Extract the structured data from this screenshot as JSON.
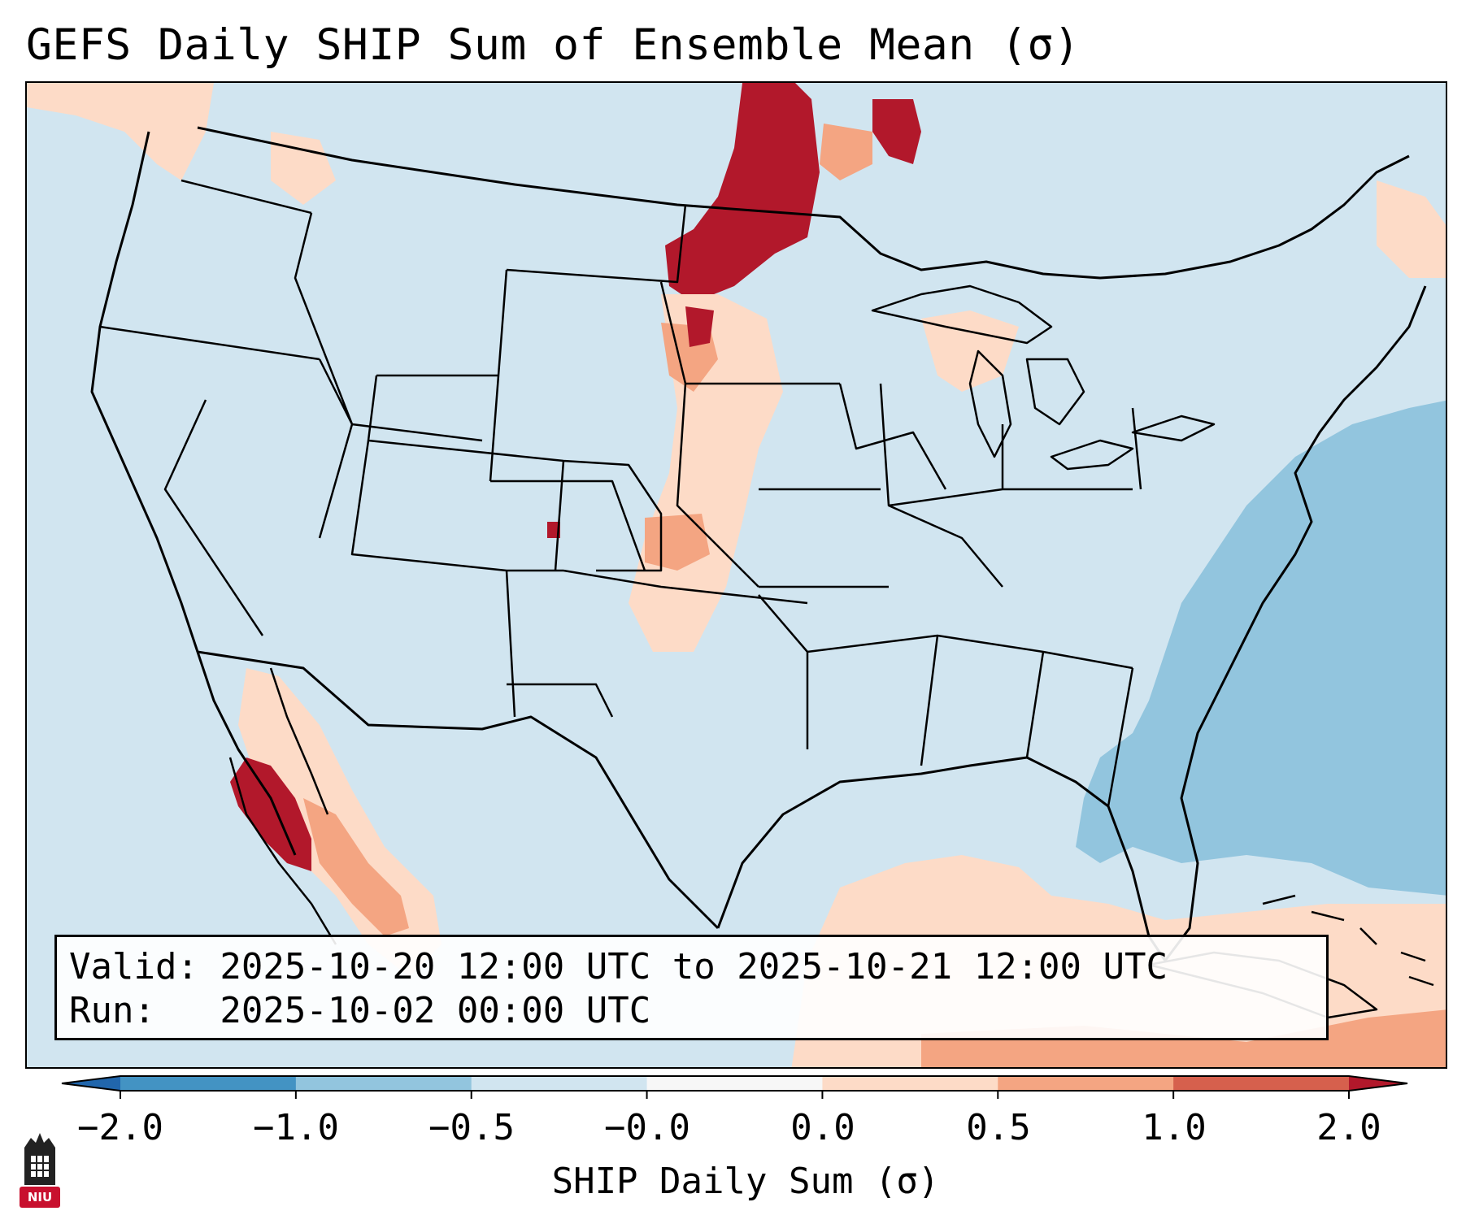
{
  "title": "GEFS Daily SHIP Sum of Ensemble Mean (σ)",
  "info": {
    "valid_line": "Valid: 2025-10-20 12:00 UTC to 2025-10-21 12:00 UTC",
    "run_line": "Run:   2025-10-02 00:00 UTC"
  },
  "colorbar": {
    "label": "SHIP Daily Sum (σ)",
    "ticks": [
      "−2.0",
      "−1.0",
      "−0.5",
      "−0.0",
      "0.0",
      "0.5",
      "1.0",
      "2.0"
    ],
    "bin_colors": [
      "#4393c3",
      "#92c5de",
      "#d1e5f0",
      "#f7f7f7",
      "#fddbc7",
      "#f4a582",
      "#d6604d"
    ],
    "under_color": "#2166ac",
    "over_color": "#b2182b"
  },
  "logo": {
    "text": "NIU",
    "color": "#c8102e"
  },
  "map_data": {
    "background_bin": "#d1e5f0",
    "features": [
      {
        "region": "North Dakota / Manitoba border",
        "level": "high",
        "color": "#b2182b"
      },
      {
        "region": "Ontario northwest",
        "level": "high",
        "color": "#b2182b"
      },
      {
        "region": "South Dakota",
        "level": "moderate",
        "color": "#f4a582"
      },
      {
        "region": "Nebraska / Kansas",
        "level": "low",
        "color": "#fddbc7"
      },
      {
        "region": "Baja California / Gulf of California",
        "level": "high",
        "color": "#b2182b"
      },
      {
        "region": "Sierra Madre Occidental",
        "level": "moderate",
        "color": "#fddbc7"
      },
      {
        "region": "Western Atlantic",
        "level": "negative",
        "color": "#92c5de"
      },
      {
        "region": "Gulf of Mexico / Caribbean",
        "level": "low",
        "color": "#fddbc7"
      }
    ]
  }
}
